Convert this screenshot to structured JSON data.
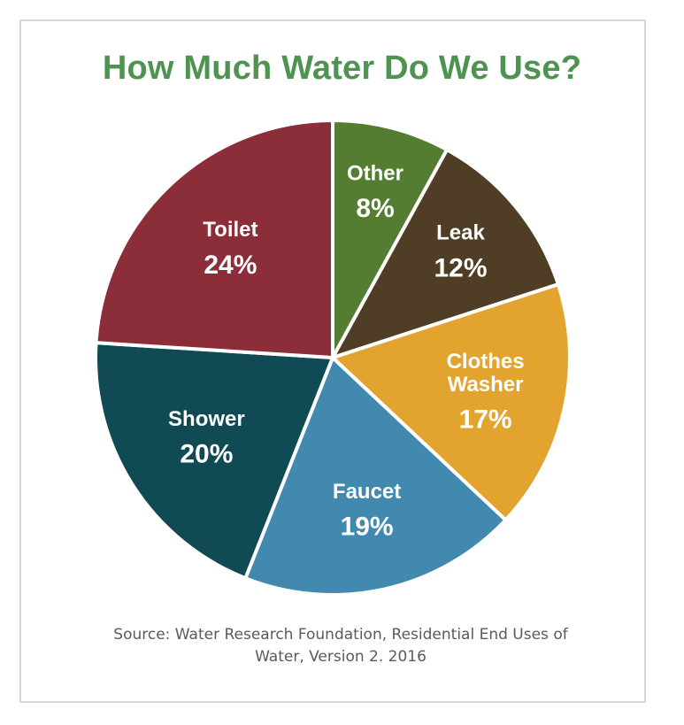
{
  "chart_data": {
    "type": "pie",
    "title": "How Much Water Do We Use?",
    "slices": [
      {
        "label": "Other",
        "label_lines": [
          "Other"
        ],
        "value": 8,
        "display": "8%",
        "color": "#547d32"
      },
      {
        "label": "Leak",
        "label_lines": [
          "Leak"
        ],
        "value": 12,
        "display": "12%",
        "color": "#4f3d25"
      },
      {
        "label": "Clothes Washer",
        "label_lines": [
          "Clothes",
          "Washer"
        ],
        "value": 17,
        "display": "17%",
        "color": "#e2a42e"
      },
      {
        "label": "Faucet",
        "label_lines": [
          "Faucet"
        ],
        "value": 19,
        "display": "19%",
        "color": "#4289b0"
      },
      {
        "label": "Shower",
        "label_lines": [
          "Shower"
        ],
        "value": 20,
        "display": "20%",
        "color": "#0f4a55"
      },
      {
        "label": "Toilet",
        "label_lines": [
          "Toilet"
        ],
        "value": 24,
        "display": "24%",
        "color": "#8c2e3a"
      }
    ],
    "start_angle_deg": 0,
    "direction": "clockwise",
    "legend": "none (labels inside slices)",
    "source": "Source: Water Research Foundation, Residential End  Uses of Water, Version 2. 2016",
    "source_lines": [
      "Source: Water Research Foundation, Residential End  Uses of",
      "Water, Version 2. 2016"
    ]
  },
  "colors": {
    "title": "#4e9350",
    "source_text": "#5a5a5a",
    "frame_border": "#d6d6d6",
    "slice_border": "#ffffff"
  }
}
